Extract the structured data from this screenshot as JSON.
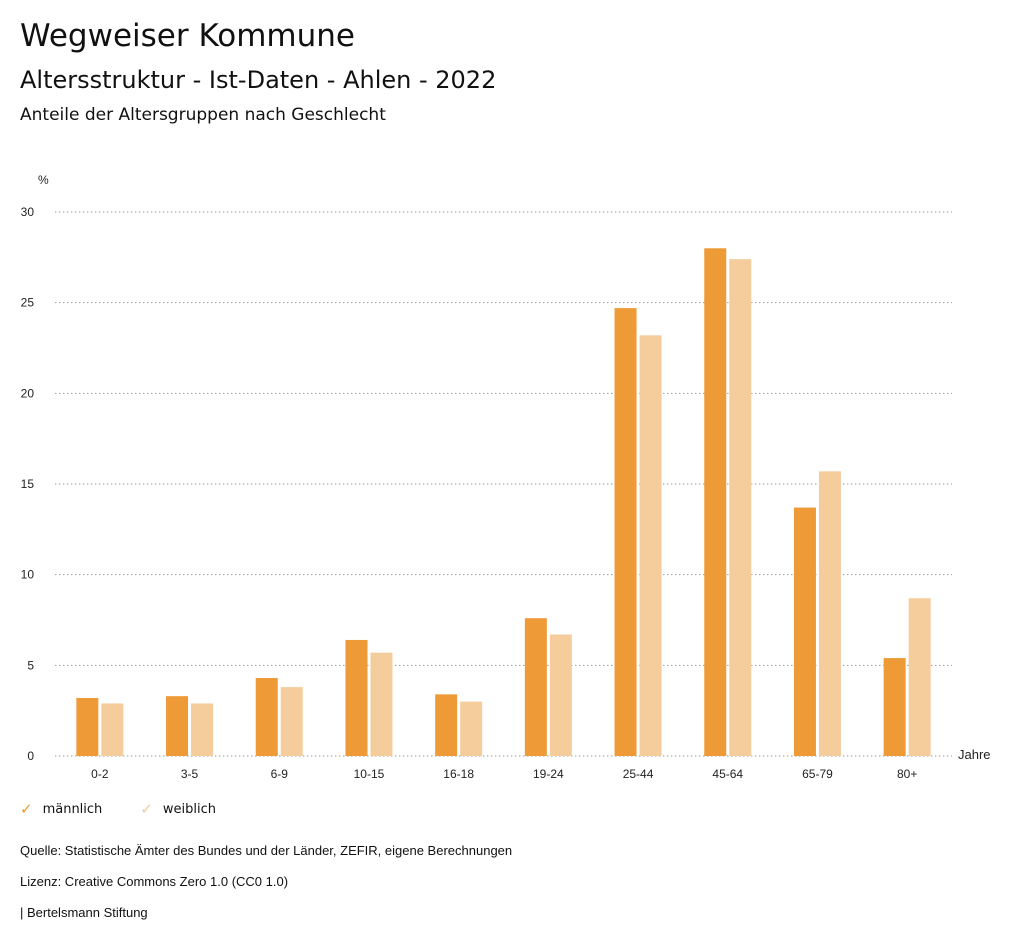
{
  "header": {
    "title": "Wegweiser Kommune",
    "subtitle": "Altersstruktur - Ist-Daten - Ahlen - 2022",
    "subsubtitle": "Anteile der Altersgruppen nach Geschlecht"
  },
  "chart_data": {
    "type": "bar",
    "ylabel": "%",
    "xlabel": "Jahre",
    "ylim": [
      0,
      30
    ],
    "yticks": [
      0,
      5,
      10,
      15,
      20,
      25,
      30
    ],
    "grid": true,
    "categories": [
      "0-2",
      "3-5",
      "6-9",
      "10-15",
      "16-18",
      "19-24",
      "25-44",
      "45-64",
      "65-79",
      "80+"
    ],
    "series": [
      {
        "name": "männlich",
        "color": "#ED9A37",
        "values": [
          3.2,
          3.3,
          4.3,
          6.4,
          3.4,
          7.6,
          24.7,
          28.0,
          13.7,
          5.4
        ]
      },
      {
        "name": "weiblich",
        "color": "#F5CD9D",
        "values": [
          2.9,
          2.9,
          3.8,
          5.7,
          3.0,
          6.7,
          23.2,
          27.4,
          15.7,
          8.7
        ]
      }
    ],
    "legend_position": "bottom-left"
  },
  "footer": {
    "source": "Quelle: Statistische Ämter des Bundes und der Länder, ZEFIR, eigene Berechnungen",
    "license": "Lizenz: Creative Commons Zero 1.0 (CC0 1.0)",
    "publisher": "| Bertelsmann Stiftung"
  }
}
